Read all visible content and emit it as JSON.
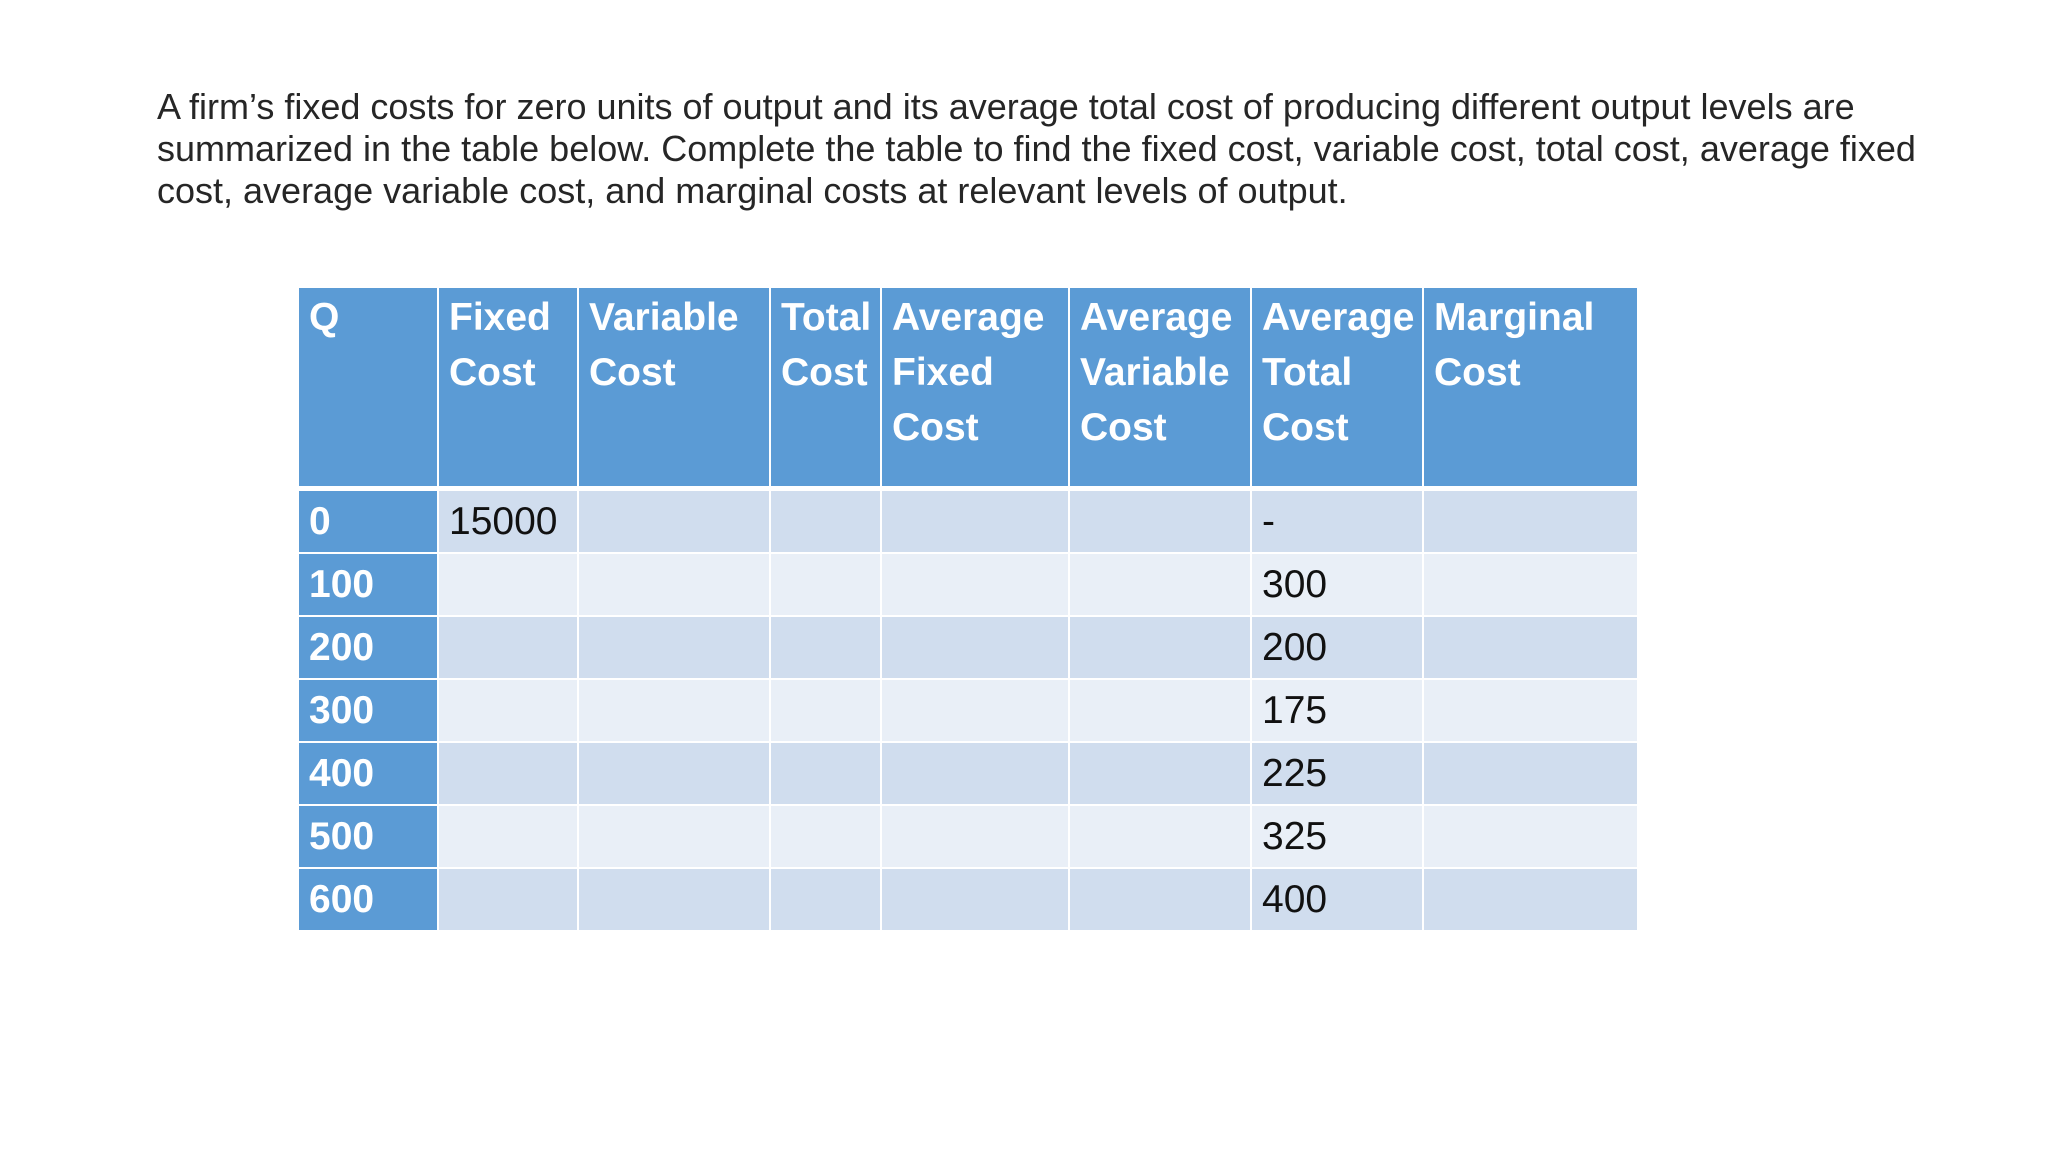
{
  "prompt": "A firm’s fixed costs for zero units of output and its average total cost of producing different output levels are summarized in the table below. Complete the table to find the fixed cost, variable cost, total cost, average fixed cost, average variable cost, and marginal costs at relevant levels of output.",
  "table": {
    "headers": [
      [
        "Q"
      ],
      [
        "Fixed",
        "Cost"
      ],
      [
        "Variable",
        "Cost"
      ],
      [
        "Total",
        "Cost"
      ],
      [
        "Average",
        "Fixed",
        "Cost"
      ],
      [
        "Average",
        "Variable",
        "Cost"
      ],
      [
        "Average",
        "Total",
        "Cost"
      ],
      [
        "Marginal",
        "Cost"
      ]
    ],
    "rows": [
      [
        "0",
        "15000",
        "",
        "",
        "",
        "",
        "-",
        ""
      ],
      [
        "100",
        "",
        "",
        "",
        "",
        "",
        "300",
        ""
      ],
      [
        "200",
        "",
        "",
        "",
        "",
        "",
        "200",
        ""
      ],
      [
        "300",
        "",
        "",
        "",
        "",
        "",
        "175",
        ""
      ],
      [
        "400",
        "",
        "",
        "",
        "",
        "",
        "225",
        ""
      ],
      [
        "500",
        "",
        "",
        "",
        "",
        "",
        "325",
        ""
      ],
      [
        "600",
        "",
        "",
        "",
        "",
        "",
        "400",
        ""
      ]
    ]
  },
  "colors": {
    "header_bg": "#5b9bd5",
    "row_odd_bg": "#d0ddee",
    "row_even_bg": "#e9eff7",
    "text": "#262626"
  }
}
